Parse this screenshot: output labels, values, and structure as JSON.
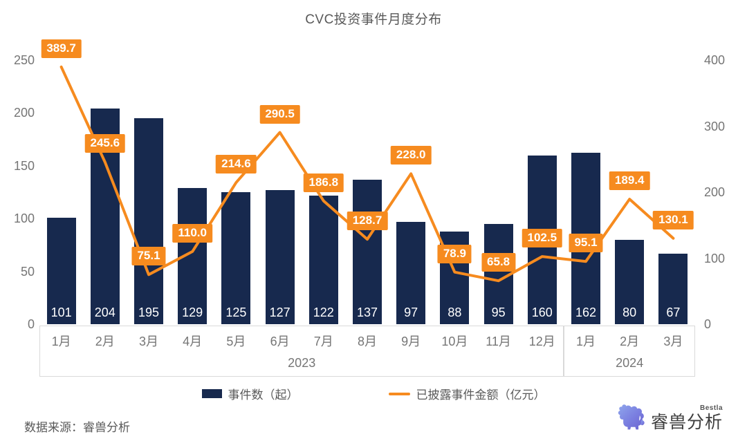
{
  "title": "CVC投资事件月度分布",
  "source": "数据来源：睿兽分析",
  "legend": {
    "bar_label": "事件数（起）",
    "line_label": "已披露事件金额（亿元）"
  },
  "logo": {
    "name": "睿兽分析",
    "sub": "Bestla"
  },
  "colors": {
    "bar": "#17294e",
    "line": "#f68b1f",
    "label_bg": "#f68b1f",
    "label_text": "#ffffff",
    "bar_value_text": "#ffffff",
    "axis_text": "#757575",
    "title_text": "#595959",
    "box_border": "#d9d9d9"
  },
  "chart_data": {
    "type": "bar",
    "subtype": "bar+line combo, dual axis",
    "title": "CVC投资事件月度分布",
    "categories": [
      "1月",
      "2月",
      "3月",
      "4月",
      "5月",
      "6月",
      "7月",
      "8月",
      "9月",
      "10月",
      "11月",
      "12月",
      "1月",
      "2月",
      "3月"
    ],
    "groups": [
      {
        "label": "2023",
        "count": 12
      },
      {
        "label": "2024",
        "count": 3
      }
    ],
    "series": [
      {
        "name": "事件数（起）",
        "type": "bar",
        "axis": "left",
        "values": [
          101,
          204,
          195,
          129,
          125,
          127,
          122,
          137,
          97,
          88,
          95,
          160,
          162,
          80,
          67
        ]
      },
      {
        "name": "已披露事件金额（亿元）",
        "type": "line",
        "axis": "right",
        "values": [
          389.7,
          245.6,
          75.1,
          110.0,
          214.6,
          290.5,
          186.8,
          128.7,
          228.0,
          78.9,
          65.8,
          102.5,
          95.1,
          189.4,
          130.1
        ]
      }
    ],
    "left_axis": {
      "ticks": [
        0,
        50,
        100,
        150,
        200,
        250
      ],
      "max": 250
    },
    "right_axis": {
      "ticks": [
        0,
        100,
        200,
        300,
        400
      ],
      "max": 400
    },
    "grid": false,
    "legend_position": "bottom",
    "data_labels": "line values shown in orange boxes above points; bar values shown in white inside bar bottoms"
  }
}
